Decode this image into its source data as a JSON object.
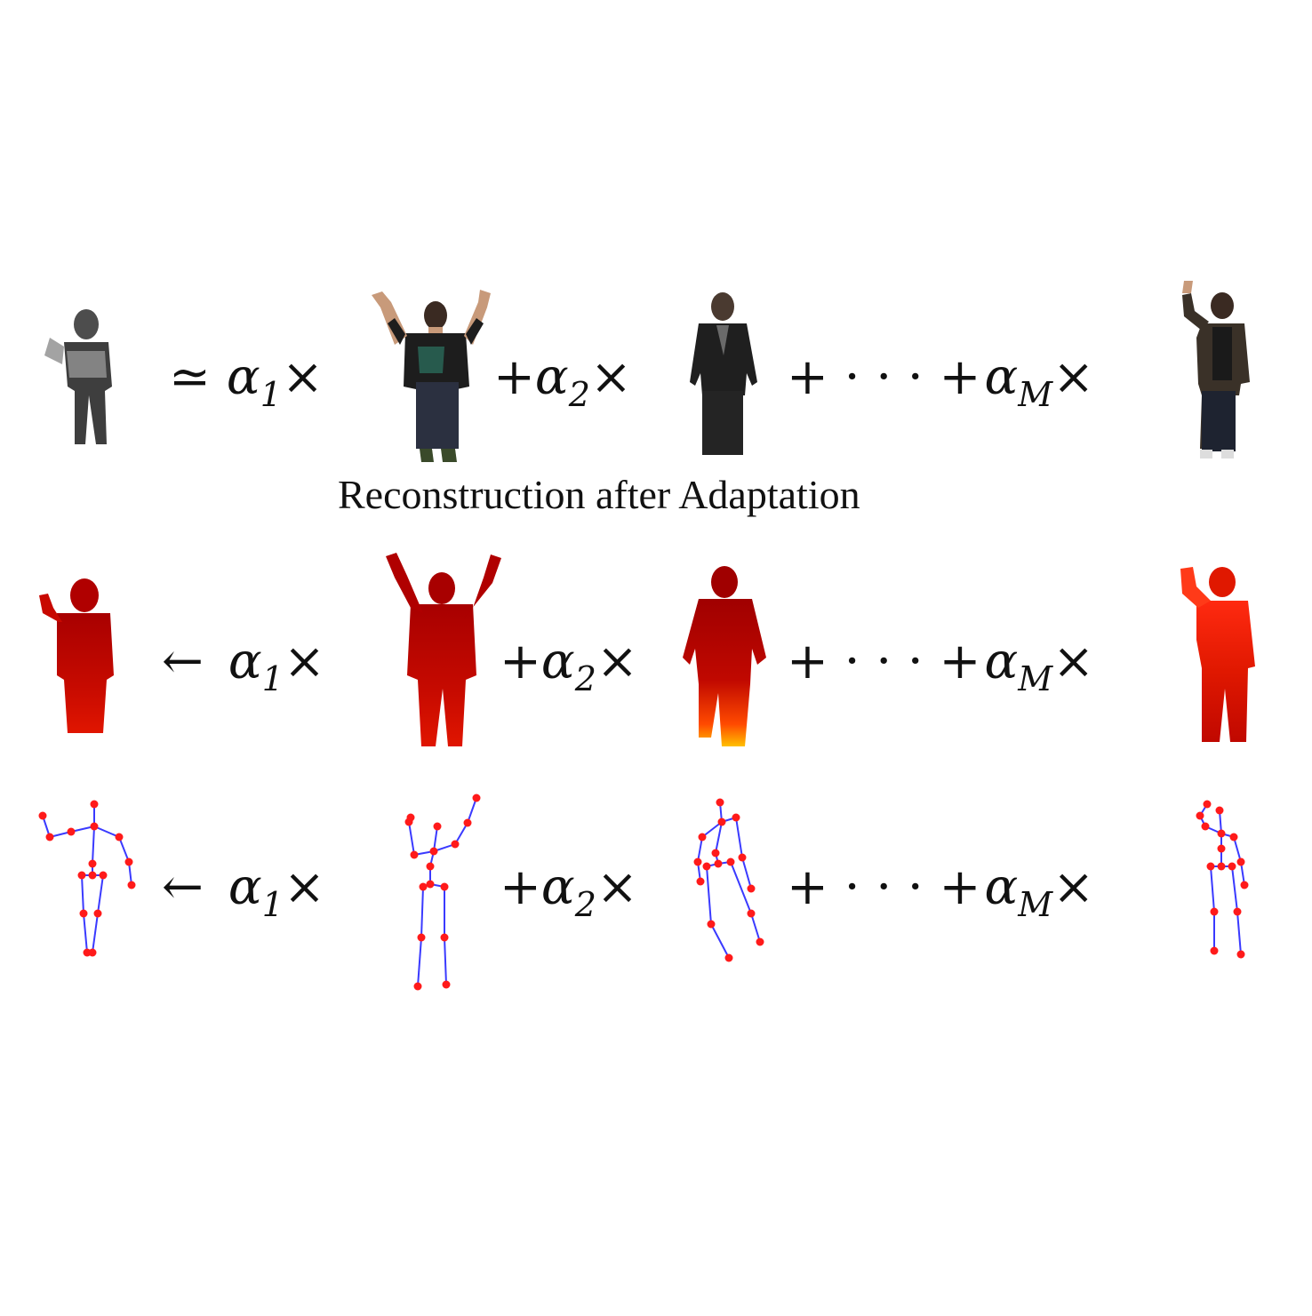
{
  "caption": "Reconstruction after Adaptation",
  "rows": [
    {
      "id": "rgb",
      "relation": "≃",
      "terms": [
        {
          "sign": "",
          "coef": "α",
          "sub": "1",
          "times": "×"
        },
        {
          "sign": "+",
          "coef": "α",
          "sub": "2",
          "times": "×"
        },
        {
          "sign": "+ · · · +",
          "coef": "α",
          "sub": "M",
          "times": "×"
        }
      ]
    },
    {
      "id": "depth",
      "relation": "←",
      "terms": [
        {
          "sign": "",
          "coef": "α",
          "sub": "1",
          "times": "×"
        },
        {
          "sign": "+",
          "coef": "α",
          "sub": "2",
          "times": "×"
        },
        {
          "sign": "+ · · · +",
          "coef": "α",
          "sub": "M",
          "times": "×"
        }
      ]
    },
    {
      "id": "skeleton",
      "relation": "←",
      "terms": [
        {
          "sign": "",
          "coef": "α",
          "sub": "1",
          "times": "×"
        },
        {
          "sign": "+",
          "coef": "α",
          "sub": "2",
          "times": "×"
        },
        {
          "sign": "+ · · · +",
          "coef": "α",
          "sub": "M",
          "times": "×"
        }
      ]
    }
  ],
  "colors": {
    "skeleton_bone": "#3a3aff",
    "skeleton_joint": "#ff1a1a",
    "depth_dark": "#b00000",
    "depth_bright": "#ff2a10",
    "depth_hot": "#ffb000",
    "rgb_shirt_dark": "#1d1d1d",
    "rgb_jeans": "#2b3040",
    "rgb_skin": "#c89a7a"
  }
}
